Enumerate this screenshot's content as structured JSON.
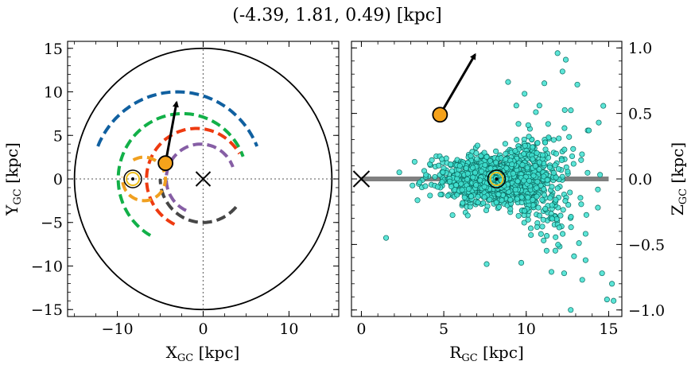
{
  "figure": {
    "title": "(-4.39, 1.81, 0.49) [kpc]"
  },
  "chart_data": [
    {
      "type": "line",
      "panel": "left",
      "xlabel_main": "X",
      "xlabel_sub": "GC",
      "xlabel_unit": " [kpc]",
      "ylabel_main": "Y",
      "ylabel_sub": "GC",
      "ylabel_unit": " [kpc]",
      "xlim": [
        -15.8,
        15.8
      ],
      "ylim": [
        -15.8,
        15.8
      ],
      "xticks": [
        -10,
        0,
        10
      ],
      "yticks": [
        -15,
        -10,
        -5,
        0,
        5,
        10,
        15
      ],
      "tick_labels": {
        "x": [
          "−10",
          "0",
          "10"
        ],
        "y": [
          "−15",
          "−10",
          "−5",
          "0",
          "5",
          "10",
          "15"
        ]
      },
      "grid": false,
      "boundary_circle": {
        "center": [
          0,
          0
        ],
        "radius": 15
      },
      "guide_lines": {
        "x": 0,
        "y": 0
      },
      "galactic_center": {
        "x": 0,
        "y": 0,
        "marker": "x"
      },
      "sun": {
        "x": -8.2,
        "y": 0,
        "marker": "circle-dot"
      },
      "object": {
        "x": -4.39,
        "y": 1.81,
        "color": "#f5a21b"
      },
      "velocity_arrow": {
        "from": [
          -4.39,
          1.81
        ],
        "to": [
          -3.1,
          8.8
        ]
      },
      "series": [
        {
          "color": "#1060a0",
          "radius": 10.0,
          "center": [
            -3.0,
            0
          ],
          "angle_start": 0,
          "angle_end": 180,
          "theta_from_deg": 158,
          "theta_to_deg": 22
        },
        {
          "color": "#12b048",
          "radius": 7.5,
          "center": [
            -2.4,
            0
          ],
          "angle_from_deg": 240,
          "angle_to_deg": 20
        },
        {
          "color": "#ee3a10",
          "radius": 5.8,
          "center": [
            -0.8,
            0
          ],
          "angle_from_deg": 244,
          "angle_to_deg": 30
        },
        {
          "color": "#865ea5",
          "radius": 4.0,
          "center": [
            -0.3,
            0
          ],
          "angle_from_deg": 245,
          "angle_to_deg": 20
        },
        {
          "color": "#464646",
          "radius": 5.0,
          "center": [
            0,
            0
          ],
          "angle_from_deg": 320,
          "angle_to_deg": 180
        },
        {
          "color": "#f0a020",
          "radius": 2.5,
          "center": [
            -6.9,
            0
          ],
          "angle_from_deg": 120,
          "angle_to_deg": 175
        }
      ]
    },
    {
      "type": "scatter",
      "panel": "right",
      "xlabel_main": "R",
      "xlabel_sub": "GC",
      "xlabel_unit": " [kpc]",
      "ylabel_main": "Z",
      "ylabel_sub": "GC",
      "ylabel_unit": " [kpc]",
      "xlim": [
        -0.6,
        15.8
      ],
      "ylim": [
        -1.05,
        1.05
      ],
      "xticks": [
        0,
        5,
        10,
        15
      ],
      "yticks": [
        -1.0,
        -0.5,
        0.0,
        0.5,
        1.0
      ],
      "tick_labels": {
        "x": [
          "0",
          "5",
          "10",
          "15"
        ],
        "y": [
          "−1.0",
          "−0.5",
          "0.0",
          "0.5",
          "1.0"
        ]
      },
      "grid": false,
      "disk_line": {
        "x": [
          0,
          15
        ],
        "y": 0,
        "color": "#808080"
      },
      "galactic_center": {
        "x": 0,
        "y": 0,
        "marker": "x"
      },
      "sun": {
        "x": 8.2,
        "y": 0,
        "marker": "circle-dot"
      },
      "object": {
        "x": 4.77,
        "y": 0.49,
        "color": "#f5a21b"
      },
      "velocity_arrow": {
        "from": [
          4.77,
          0.49
        ],
        "to": [
          6.9,
          0.95
        ]
      },
      "points_color": "#40e0d0",
      "scatter_cloud": {
        "r_center": 8.5,
        "r_spread": 2.4,
        "z_spread": 0.09,
        "count": 1400,
        "seed": 7
      },
      "outliers": [
        {
          "x": 1.5,
          "y": -0.45
        },
        {
          "x": 2.3,
          "y": 0.05
        },
        {
          "x": 3.1,
          "y": -0.05
        },
        {
          "x": 7.6,
          "y": -0.65
        },
        {
          "x": 9.7,
          "y": -0.64
        },
        {
          "x": 11.9,
          "y": 0.96
        },
        {
          "x": 12.4,
          "y": 0.91
        },
        {
          "x": 12.2,
          "y": 0.82
        },
        {
          "x": 13.1,
          "y": 0.72
        },
        {
          "x": 11.1,
          "y": 0.73
        },
        {
          "x": 9.9,
          "y": 0.65
        },
        {
          "x": 13.4,
          "y": -0.77
        },
        {
          "x": 14.9,
          "y": -0.92
        },
        {
          "x": 15.3,
          "y": -0.93
        },
        {
          "x": 12.3,
          "y": -0.72
        },
        {
          "x": 12.7,
          "y": -1.0
        },
        {
          "x": 15.2,
          "y": -0.8
        },
        {
          "x": 14.6,
          "y": -0.72
        },
        {
          "x": 13.8,
          "y": 0.37
        },
        {
          "x": 14.4,
          "y": 0.43
        },
        {
          "x": 13.6,
          "y": -0.62
        },
        {
          "x": 13.2,
          "y": -0.49
        },
        {
          "x": 12.9,
          "y": -0.59
        },
        {
          "x": 10.8,
          "y": 0.56
        },
        {
          "x": 8.9,
          "y": 0.74
        },
        {
          "x": 9.4,
          "y": 0.56
        },
        {
          "x": 12.0,
          "y": -0.37
        }
      ]
    }
  ]
}
